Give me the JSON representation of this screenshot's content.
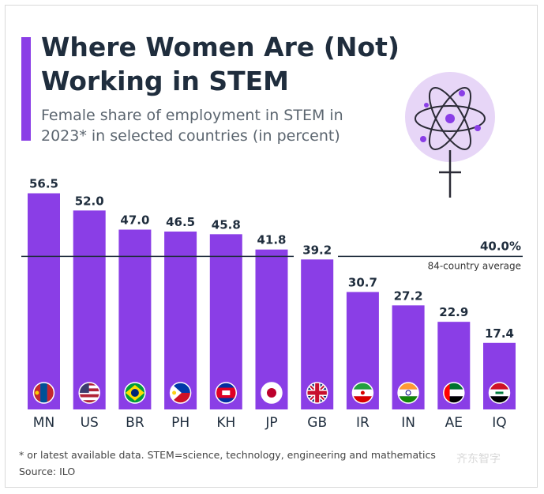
{
  "header": {
    "title": "Where Women Are (Not) Working in STEM",
    "subtitle": "Female share of employment in STEM in 2023* in selected countries (in percent)"
  },
  "footer": {
    "note": "* or latest available data. STEM=science, technology, engineering and mathematics",
    "source": "Source: ILO",
    "watermark": "齐东智字"
  },
  "icons": {
    "illustration": "atom-female-symbol-icon"
  },
  "colors": {
    "bar": "#8a3ee6",
    "accent": "#8a3ee6",
    "text": "#1f2d3d",
    "icon_circle": "#e7d6f7"
  },
  "chart_data": {
    "type": "bar",
    "title": "Where Women Are (Not) Working in STEM",
    "subtitle": "Female share of employment in STEM in 2023* in selected countries (in percent)",
    "categories": [
      "MN",
      "US",
      "BR",
      "PH",
      "KH",
      "JP",
      "GB",
      "IR",
      "IN",
      "AE",
      "IQ"
    ],
    "values": [
      56.5,
      52.0,
      47.0,
      46.5,
      45.8,
      41.8,
      39.2,
      30.7,
      27.2,
      22.9,
      17.4
    ],
    "value_labels": [
      "56.5",
      "52.0",
      "47.0",
      "46.5",
      "45.8",
      "41.8",
      "39.2",
      "30.7",
      "27.2",
      "22.9",
      "17.4"
    ],
    "flags": [
      "mongolia-flag-icon",
      "usa-flag-icon",
      "brazil-flag-icon",
      "philippines-flag-icon",
      "cambodia-flag-icon",
      "japan-flag-icon",
      "uk-flag-icon",
      "iran-flag-icon",
      "india-flag-icon",
      "uae-flag-icon",
      "iraq-flag-icon"
    ],
    "reference_line": {
      "value": 40.0,
      "value_label": "40.0%",
      "label": "84-country average"
    },
    "xlabel": "",
    "ylabel": "",
    "ylim": [
      0,
      60
    ],
    "grid": false,
    "legend": "none"
  }
}
